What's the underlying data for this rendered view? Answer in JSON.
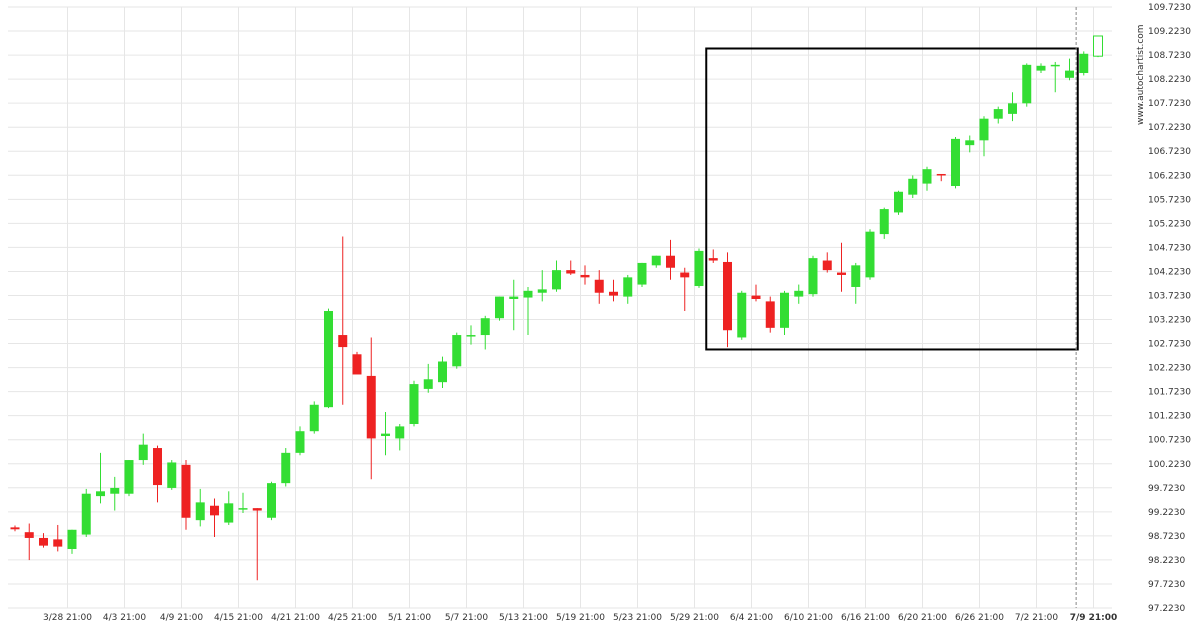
{
  "watermark": "www.autochartist.com",
  "colors": {
    "up": "#33dd33",
    "down": "#ee2222",
    "grid": "#e6e6e6",
    "box": "#000000",
    "crosshair": "#888888",
    "axis_text": "#333333"
  },
  "chart_data": {
    "type": "candlestick",
    "title": "",
    "xlabel": "",
    "ylabel": "",
    "ylim": [
      97.223,
      109.723
    ],
    "y_ticks": [
      "109.7230",
      "109.2230",
      "108.7230",
      "108.2230",
      "107.7230",
      "107.2230",
      "106.7230",
      "106.2230",
      "105.7230",
      "105.2230",
      "104.7230",
      "104.2230",
      "103.7230",
      "103.2230",
      "102.7230",
      "102.2230",
      "101.7230",
      "101.2230",
      "100.7230",
      "100.2230",
      "99.7230",
      "99.2230",
      "98.7230",
      "98.2230",
      "97.7230",
      "97.2230"
    ],
    "x_ticks": [
      {
        "label": "3/28 21:00",
        "index": 2
      },
      {
        "label": "4/3 21:00",
        "index": 6
      },
      {
        "label": "4/9 21:00",
        "index": 10
      },
      {
        "label": "4/15 21:00",
        "index": 14
      },
      {
        "label": "4/21 21:00",
        "index": 18
      },
      {
        "label": "4/25 21:00",
        "index": 22
      },
      {
        "label": "5/1 21:00",
        "index": 26
      },
      {
        "label": "5/7 21:00",
        "index": 30
      },
      {
        "label": "5/13 21:00",
        "index": 34
      },
      {
        "label": "5/19 21:00",
        "index": 38
      },
      {
        "label": "5/23 21:00",
        "index": 42
      },
      {
        "label": "5/29 21:00",
        "index": 46
      },
      {
        "label": "6/4 21:00",
        "index": 50
      },
      {
        "label": "6/10 21:00",
        "index": 54
      },
      {
        "label": "6/16 21:00",
        "index": 58
      },
      {
        "label": "6/20 21:00",
        "index": 62
      },
      {
        "label": "6/26 21:00",
        "index": 66
      },
      {
        "label": "7/2 21:00",
        "index": 70
      },
      {
        "label": "7/9 21:00",
        "index": 74,
        "bold": true
      }
    ],
    "candles": [
      {
        "o": 98.9,
        "h": 98.94,
        "l": 98.82,
        "c": 98.86
      },
      {
        "o": 98.8,
        "h": 98.98,
        "l": 98.22,
        "c": 98.68
      },
      {
        "o": 98.68,
        "h": 98.78,
        "l": 98.48,
        "c": 98.52
      },
      {
        "o": 98.65,
        "h": 98.95,
        "l": 98.4,
        "c": 98.5
      },
      {
        "o": 98.45,
        "h": 98.85,
        "l": 98.35,
        "c": 98.85
      },
      {
        "o": 98.75,
        "h": 99.7,
        "l": 98.7,
        "c": 99.6
      },
      {
        "o": 99.55,
        "h": 100.45,
        "l": 99.4,
        "c": 99.65
      },
      {
        "o": 99.6,
        "h": 99.95,
        "l": 99.25,
        "c": 99.72
      },
      {
        "o": 99.6,
        "h": 100.3,
        "l": 99.55,
        "c": 100.3
      },
      {
        "o": 100.3,
        "h": 100.85,
        "l": 100.2,
        "c": 100.62
      },
      {
        "o": 100.55,
        "h": 100.6,
        "l": 99.42,
        "c": 99.78
      },
      {
        "o": 99.72,
        "h": 100.3,
        "l": 99.68,
        "c": 100.25
      },
      {
        "o": 100.2,
        "h": 100.3,
        "l": 98.85,
        "c": 99.1
      },
      {
        "o": 99.05,
        "h": 99.7,
        "l": 98.92,
        "c": 99.42
      },
      {
        "o": 99.35,
        "h": 99.5,
        "l": 98.7,
        "c": 99.15
      },
      {
        "o": 99.0,
        "h": 99.65,
        "l": 98.95,
        "c": 99.4
      },
      {
        "o": 99.3,
        "h": 99.62,
        "l": 99.2,
        "c": 99.3
      },
      {
        "o": 99.3,
        "h": 99.3,
        "l": 97.8,
        "c": 99.25
      },
      {
        "o": 99.1,
        "h": 99.85,
        "l": 99.05,
        "c": 99.82
      },
      {
        "o": 99.82,
        "h": 100.55,
        "l": 99.75,
        "c": 100.45
      },
      {
        "o": 100.45,
        "h": 101.0,
        "l": 100.4,
        "c": 100.9
      },
      {
        "o": 100.9,
        "h": 101.52,
        "l": 100.85,
        "c": 101.45
      },
      {
        "o": 101.4,
        "h": 103.45,
        "l": 101.38,
        "c": 103.4
      },
      {
        "o": 102.9,
        "h": 104.95,
        "l": 101.45,
        "c": 102.65
      },
      {
        "o": 102.5,
        "h": 102.55,
        "l": 102.15,
        "c": 102.08
      },
      {
        "o": 102.05,
        "h": 102.85,
        "l": 99.9,
        "c": 100.75
      },
      {
        "o": 100.8,
        "h": 101.3,
        "l": 100.4,
        "c": 100.85
      },
      {
        "o": 100.75,
        "h": 101.05,
        "l": 100.5,
        "c": 101.0
      },
      {
        "o": 101.05,
        "h": 101.95,
        "l": 101.0,
        "c": 101.88
      },
      {
        "o": 101.78,
        "h": 102.3,
        "l": 101.7,
        "c": 101.98
      },
      {
        "o": 101.92,
        "h": 102.45,
        "l": 101.8,
        "c": 102.35
      },
      {
        "o": 102.25,
        "h": 102.95,
        "l": 102.2,
        "c": 102.9
      },
      {
        "o": 102.88,
        "h": 103.1,
        "l": 102.7,
        "c": 102.9
      },
      {
        "o": 102.9,
        "h": 103.3,
        "l": 102.6,
        "c": 103.25
      },
      {
        "o": 103.25,
        "h": 103.7,
        "l": 103.2,
        "c": 103.7
      },
      {
        "o": 103.65,
        "h": 104.05,
        "l": 103.0,
        "c": 103.7
      },
      {
        "o": 103.68,
        "h": 103.9,
        "l": 102.9,
        "c": 103.82
      },
      {
        "o": 103.78,
        "h": 104.25,
        "l": 103.6,
        "c": 103.85
      },
      {
        "o": 103.85,
        "h": 104.45,
        "l": 103.8,
        "c": 104.25
      },
      {
        "o": 104.25,
        "h": 104.45,
        "l": 104.15,
        "c": 104.18
      },
      {
        "o": 104.15,
        "h": 104.35,
        "l": 103.95,
        "c": 104.1
      },
      {
        "o": 104.05,
        "h": 104.25,
        "l": 103.55,
        "c": 103.78
      },
      {
        "o": 103.8,
        "h": 104.05,
        "l": 103.6,
        "c": 103.72
      },
      {
        "o": 103.7,
        "h": 104.15,
        "l": 103.55,
        "c": 104.1
      },
      {
        "o": 103.95,
        "h": 104.4,
        "l": 103.9,
        "c": 104.4
      },
      {
        "o": 104.35,
        "h": 104.55,
        "l": 104.3,
        "c": 104.55
      },
      {
        "o": 104.55,
        "h": 104.88,
        "l": 104.05,
        "c": 104.3
      },
      {
        "o": 104.2,
        "h": 104.3,
        "l": 103.4,
        "c": 104.1
      },
      {
        "o": 103.92,
        "h": 104.7,
        "l": 103.88,
        "c": 104.65
      },
      {
        "o": 104.5,
        "h": 104.68,
        "l": 104.4,
        "c": 104.45
      },
      {
        "o": 104.42,
        "h": 104.62,
        "l": 102.65,
        "c": 103.0
      },
      {
        "o": 102.85,
        "h": 103.82,
        "l": 102.8,
        "c": 103.78
      },
      {
        "o": 103.72,
        "h": 103.95,
        "l": 103.6,
        "c": 103.65
      },
      {
        "o": 103.6,
        "h": 103.7,
        "l": 102.95,
        "c": 103.05
      },
      {
        "o": 103.05,
        "h": 103.82,
        "l": 102.9,
        "c": 103.78
      },
      {
        "o": 103.7,
        "h": 103.95,
        "l": 103.55,
        "c": 103.82
      },
      {
        "o": 103.75,
        "h": 104.55,
        "l": 103.7,
        "c": 104.5
      },
      {
        "o": 104.45,
        "h": 104.62,
        "l": 104.2,
        "c": 104.25
      },
      {
        "o": 104.2,
        "h": 104.82,
        "l": 103.8,
        "c": 104.15
      },
      {
        "o": 103.9,
        "h": 104.4,
        "l": 103.55,
        "c": 104.35
      },
      {
        "o": 104.1,
        "h": 105.1,
        "l": 104.05,
        "c": 105.05
      },
      {
        "o": 105.0,
        "h": 105.55,
        "l": 104.9,
        "c": 105.52
      },
      {
        "o": 105.45,
        "h": 105.9,
        "l": 105.4,
        "c": 105.88
      },
      {
        "o": 105.82,
        "h": 106.22,
        "l": 105.75,
        "c": 106.15
      },
      {
        "o": 106.05,
        "h": 106.4,
        "l": 105.9,
        "c": 106.35
      },
      {
        "o": 106.25,
        "h": 106.25,
        "l": 106.1,
        "c": 106.22
      },
      {
        "o": 106.0,
        "h": 107.02,
        "l": 105.95,
        "c": 106.98
      },
      {
        "o": 106.85,
        "h": 107.05,
        "l": 106.7,
        "c": 106.95
      },
      {
        "o": 106.95,
        "h": 107.45,
        "l": 106.62,
        "c": 107.4
      },
      {
        "o": 107.4,
        "h": 107.65,
        "l": 107.3,
        "c": 107.6
      },
      {
        "o": 107.5,
        "h": 107.95,
        "l": 107.35,
        "c": 107.72
      },
      {
        "o": 107.72,
        "h": 108.55,
        "l": 107.65,
        "c": 108.52
      },
      {
        "o": 108.4,
        "h": 108.55,
        "l": 108.35,
        "c": 108.5
      },
      {
        "o": 108.5,
        "h": 108.58,
        "l": 107.95,
        "c": 108.52
      },
      {
        "o": 108.25,
        "h": 108.65,
        "l": 108.2,
        "c": 108.4
      },
      {
        "o": 108.35,
        "h": 108.8,
        "l": 108.3,
        "c": 108.75
      },
      {
        "o": 108.7,
        "h": 109.12,
        "l": 108.68,
        "c": 109.12,
        "hollow": true
      }
    ],
    "highlight_box": {
      "start_index": 49,
      "end_index": 75,
      "low": 102.6,
      "high": 108.86
    },
    "crosshair_index": 74.5,
    "grid": true,
    "legend": "none"
  }
}
